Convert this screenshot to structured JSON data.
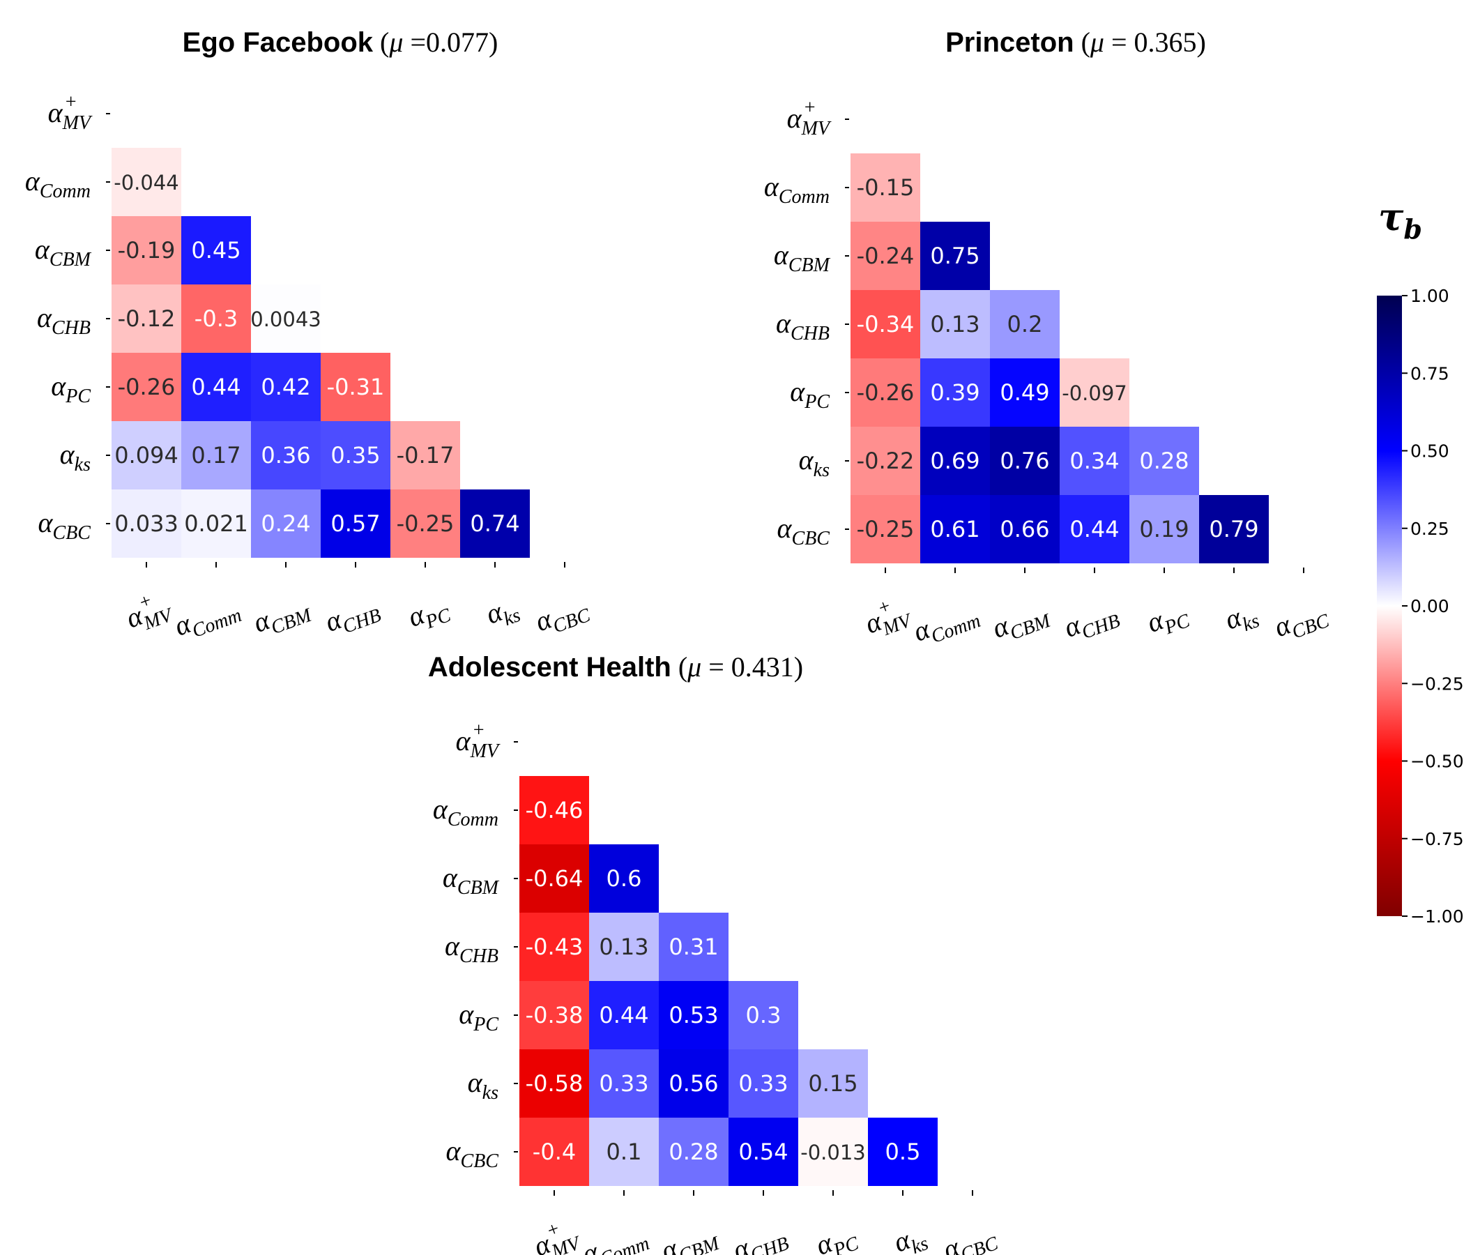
{
  "colorbar": {
    "title": "τ",
    "title_sub": "b",
    "min": -1.0,
    "max": 1.0,
    "ticks": [
      {
        "value": 1.0,
        "label": "1.00"
      },
      {
        "value": 0.75,
        "label": "0.75"
      },
      {
        "value": 0.5,
        "label": "0.50"
      },
      {
        "value": 0.25,
        "label": "0.25"
      },
      {
        "value": 0.0,
        "label": "0.00"
      },
      {
        "value": -0.25,
        "label": "−0.25"
      },
      {
        "value": -0.5,
        "label": "−0.50"
      },
      {
        "value": -0.75,
        "label": "−0.75"
      },
      {
        "value": -1.0,
        "label": "−1.00"
      }
    ],
    "colormap": "seismic_r",
    "colors": {
      "neg_dark": "#800000",
      "neg": "#ff0000",
      "mid": "#ffffff",
      "pos": "#0000ff",
      "pos_dark": "#000050"
    }
  },
  "chart_data": [
    {
      "type": "heatmap",
      "title_bold": "Ego Facebook",
      "title_open": " (",
      "title_mu": "μ",
      "title_eq": " =0.077)",
      "row_labels": [
        {
          "base": "α",
          "sub": "MV",
          "sup": "+"
        },
        {
          "base": "α",
          "sub": "Comm"
        },
        {
          "base": "α",
          "sub": "CBM"
        },
        {
          "base": "α",
          "sub": "CHB"
        },
        {
          "base": "α",
          "sub": "PC"
        },
        {
          "base": "α",
          "sub": "ks"
        },
        {
          "base": "α",
          "sub": "CBC"
        }
      ],
      "col_labels": [
        {
          "base": "α",
          "sub": "MV",
          "sup": "+"
        },
        {
          "base": "α",
          "sub": "Comm"
        },
        {
          "base": "α",
          "sub": "CBM"
        },
        {
          "base": "α",
          "sub": "CHB"
        },
        {
          "base": "α",
          "sub": "PC"
        },
        {
          "base": "α",
          "sub": "ks"
        },
        {
          "base": "α",
          "sub": "CBC"
        }
      ],
      "values": [
        [],
        [
          -0.044
        ],
        [
          -0.19,
          0.45
        ],
        [
          -0.12,
          -0.3,
          0.0043
        ],
        [
          -0.26,
          0.44,
          0.42,
          -0.31
        ],
        [
          0.094,
          0.17,
          0.36,
          0.35,
          -0.17
        ],
        [
          0.033,
          0.021,
          0.24,
          0.57,
          -0.25,
          0.74
        ]
      ],
      "labels": [
        [],
        [
          "-0.044"
        ],
        [
          "-0.19",
          "0.45"
        ],
        [
          "-0.12",
          "-0.3",
          "0.0043"
        ],
        [
          "-0.26",
          "0.44",
          "0.42",
          "-0.31"
        ],
        [
          "0.094",
          "0.17",
          "0.36",
          "0.35",
          "-0.17"
        ],
        [
          "0.033",
          "0.021",
          "0.24",
          "0.57",
          "-0.25",
          "0.74"
        ]
      ]
    },
    {
      "type": "heatmap",
      "title_bold": "Princeton",
      "title_open": " (",
      "title_mu": "μ",
      "title_eq": " = 0.365)",
      "row_labels": [
        {
          "base": "α",
          "sub": "MV",
          "sup": "+"
        },
        {
          "base": "α",
          "sub": "Comm"
        },
        {
          "base": "α",
          "sub": "CBM"
        },
        {
          "base": "α",
          "sub": "CHB"
        },
        {
          "base": "α",
          "sub": "PC"
        },
        {
          "base": "α",
          "sub": "ks"
        },
        {
          "base": "α",
          "sub": "CBC"
        }
      ],
      "col_labels": [
        {
          "base": "α",
          "sub": "MV",
          "sup": "+"
        },
        {
          "base": "α",
          "sub": "Comm"
        },
        {
          "base": "α",
          "sub": "CBM"
        },
        {
          "base": "α",
          "sub": "CHB"
        },
        {
          "base": "α",
          "sub": "PC"
        },
        {
          "base": "α",
          "sub": "ks"
        },
        {
          "base": "α",
          "sub": "CBC"
        }
      ],
      "values": [
        [],
        [
          -0.15
        ],
        [
          -0.24,
          0.75
        ],
        [
          -0.34,
          0.13,
          0.2
        ],
        [
          -0.26,
          0.39,
          0.49,
          -0.097
        ],
        [
          -0.22,
          0.69,
          0.76,
          0.34,
          0.28
        ],
        [
          -0.25,
          0.61,
          0.66,
          0.44,
          0.19,
          0.79
        ]
      ],
      "labels": [
        [],
        [
          "-0.15"
        ],
        [
          "-0.24",
          "0.75"
        ],
        [
          "-0.34",
          "0.13",
          "0.2"
        ],
        [
          "-0.26",
          "0.39",
          "0.49",
          "-0.097"
        ],
        [
          "-0.22",
          "0.69",
          "0.76",
          "0.34",
          "0.28"
        ],
        [
          "-0.25",
          "0.61",
          "0.66",
          "0.44",
          "0.19",
          "0.79"
        ]
      ]
    },
    {
      "type": "heatmap",
      "title_bold": "Adolescent Health",
      "title_open": " (",
      "title_mu": "μ",
      "title_eq": " = 0.431)",
      "row_labels": [
        {
          "base": "α",
          "sub": "MV",
          "sup": "+"
        },
        {
          "base": "α",
          "sub": "Comm"
        },
        {
          "base": "α",
          "sub": "CBM"
        },
        {
          "base": "α",
          "sub": "CHB"
        },
        {
          "base": "α",
          "sub": "PC"
        },
        {
          "base": "α",
          "sub": "ks"
        },
        {
          "base": "α",
          "sub": "CBC"
        }
      ],
      "col_labels": [
        {
          "base": "α",
          "sub": "MV",
          "sup": "+"
        },
        {
          "base": "α",
          "sub": "Comm"
        },
        {
          "base": "α",
          "sub": "CBM"
        },
        {
          "base": "α",
          "sub": "CHB"
        },
        {
          "base": "α",
          "sub": "PC"
        },
        {
          "base": "α",
          "sub": "ks"
        },
        {
          "base": "α",
          "sub": "CBC"
        }
      ],
      "values": [
        [],
        [
          -0.46
        ],
        [
          -0.64,
          0.6
        ],
        [
          -0.43,
          0.13,
          0.31
        ],
        [
          -0.38,
          0.44,
          0.53,
          0.3
        ],
        [
          -0.58,
          0.33,
          0.56,
          0.33,
          0.15
        ],
        [
          -0.4,
          0.1,
          0.28,
          0.54,
          -0.013,
          0.5
        ]
      ],
      "labels": [
        [],
        [
          "-0.46"
        ],
        [
          "-0.64",
          "0.6"
        ],
        [
          "-0.43",
          "0.13",
          "0.31"
        ],
        [
          "-0.38",
          "0.44",
          "0.53",
          "0.3"
        ],
        [
          "-0.58",
          "0.33",
          "0.56",
          "0.33",
          "0.15"
        ],
        [
          "-0.4",
          "0.1",
          "0.28",
          "0.54",
          "-0.013",
          "0.5"
        ]
      ]
    }
  ]
}
